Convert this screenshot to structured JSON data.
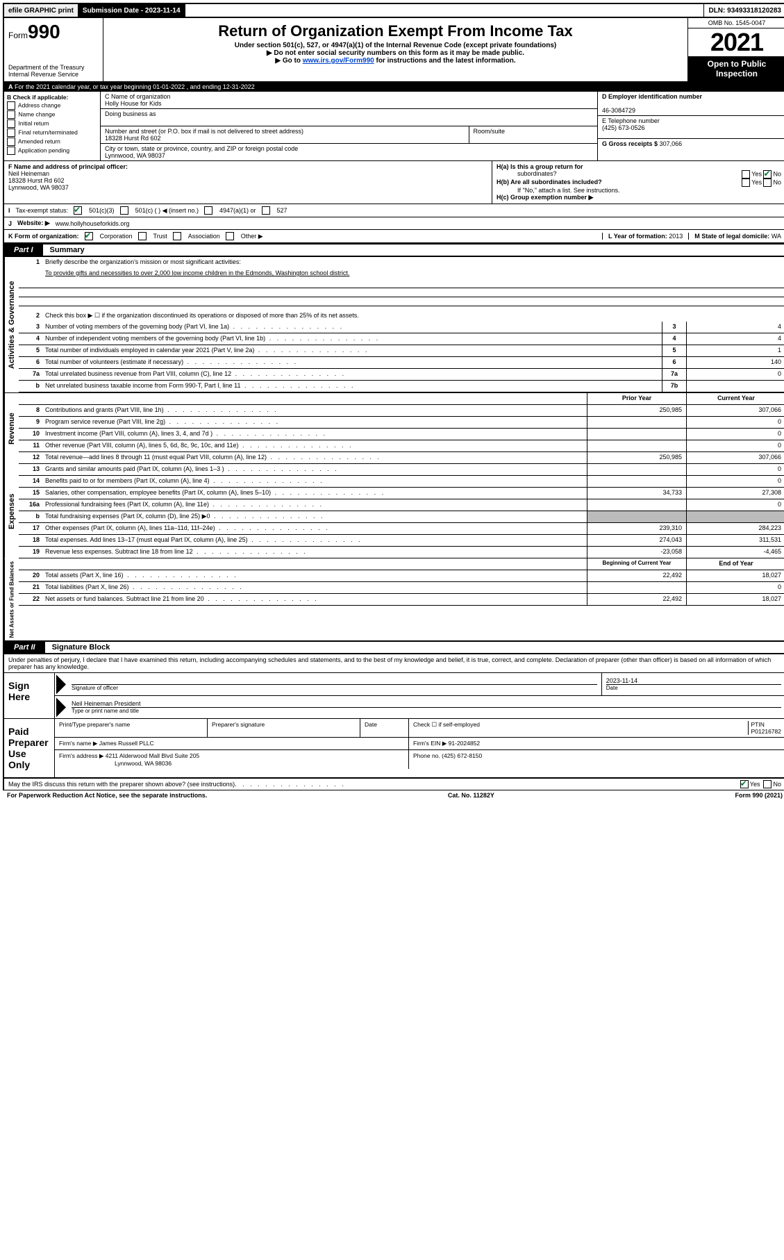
{
  "topbar": {
    "efile": "efile GRAPHIC print",
    "submission_label": "Submission Date - 2023-11-14",
    "dln": "DLN: 93493318120283"
  },
  "header": {
    "form_label": "Form",
    "form_number": "990",
    "title": "Return of Organization Exempt From Income Tax",
    "subtitle": "Under section 501(c), 527, or 4947(a)(1) of the Internal Revenue Code (except private foundations)",
    "note1": "▶ Do not enter social security numbers on this form as it may be made public.",
    "note2_pre": "▶ Go to ",
    "note2_link": "www.irs.gov/Form990",
    "note2_post": " for instructions and the latest information.",
    "dept": "Department of the Treasury",
    "irs": "Internal Revenue Service",
    "omb": "OMB No. 1545-0047",
    "year": "2021",
    "open1": "Open to Public",
    "open2": "Inspection"
  },
  "lineA": "For the 2021 calendar year, or tax year beginning 01-01-2022    , and ending 12-31-2022",
  "boxB": {
    "label": "B Check if applicable:",
    "items": [
      "Address change",
      "Name change",
      "Initial return",
      "Final return/terminated",
      "Amended return",
      "Application pending"
    ]
  },
  "boxC": {
    "name_label": "C Name of organization",
    "name": "Holly House for Kids",
    "dba_label": "Doing business as",
    "addr_label": "Number and street (or P.O. box if mail is not delivered to street address)",
    "room_label": "Room/suite",
    "addr": "18328 Hurst Rd 602",
    "city_label": "City or town, state or province, country, and ZIP or foreign postal code",
    "city": "Lynnwood, WA  98037"
  },
  "boxD": {
    "label": "D Employer identification number",
    "value": "46-3084729"
  },
  "boxE": {
    "label": "E Telephone number",
    "value": "(425) 673-0526"
  },
  "boxG": {
    "label": "G Gross receipts $",
    "value": "307,066"
  },
  "boxF": {
    "label": "F  Name and address of principal officer:",
    "name": "Neil Heineman",
    "addr1": "18328 Hurst Rd 602",
    "addr2": "Lynnwood, WA  98037"
  },
  "boxH": {
    "ha_label": "H(a)  Is this a group return for",
    "ha_label2": "subordinates?",
    "hb_label": "H(b)  Are all subordinates included?",
    "hb_note": "If \"No,\" attach a list. See instructions.",
    "hc_label": "H(c)  Group exemption number ▶"
  },
  "boxI": {
    "label": "I",
    "text": "Tax-exempt status:",
    "opts": [
      "501(c)(3)",
      "501(c) (  ) ◀ (insert no.)",
      "4947(a)(1) or",
      "527"
    ]
  },
  "boxJ": {
    "label": "J",
    "text": "Website: ▶",
    "value": "www.hollyhouseforkids.org"
  },
  "boxK": {
    "label": "K Form of organization:",
    "opts": [
      "Corporation",
      "Trust",
      "Association",
      "Other ▶"
    ]
  },
  "boxL": {
    "label": "L Year of formation:",
    "value": "2013"
  },
  "boxM": {
    "label": "M State of legal domicile:",
    "value": "WA"
  },
  "part1": {
    "tab": "Part I",
    "title": "Summary"
  },
  "summary": {
    "l1_label": "Briefly describe the organization's mission or most significant activities:",
    "l1_text": "To provide gifts and necessities to over 2,000 low income children in the Edmonds, Washington school district.",
    "l2_label": "Check this box ▶ ☐  if the organization discontinued its operations or disposed of more than 25% of its net assets.",
    "rows": [
      {
        "n": "3",
        "label": "Number of voting members of the governing body (Part VI, line 1a)",
        "box": "3",
        "val": "4"
      },
      {
        "n": "4",
        "label": "Number of independent voting members of the governing body (Part VI, line 1b)",
        "box": "4",
        "val": "4"
      },
      {
        "n": "5",
        "label": "Total number of individuals employed in calendar year 2021 (Part V, line 2a)",
        "box": "5",
        "val": "1"
      },
      {
        "n": "6",
        "label": "Total number of volunteers (estimate if necessary)",
        "box": "6",
        "val": "140"
      },
      {
        "n": "7a",
        "label": "Total unrelated business revenue from Part VIII, column (C), line 12",
        "box": "7a",
        "val": "0"
      },
      {
        "n": "b",
        "label": "Net unrelated business taxable income from Form 990-T, Part I, line 11",
        "box": "7b",
        "val": ""
      }
    ]
  },
  "revenue": {
    "hdr_prior": "Prior Year",
    "hdr_current": "Current Year",
    "rows": [
      {
        "n": "8",
        "label": "Contributions and grants (Part VIII, line 1h)",
        "p": "250,985",
        "c": "307,066"
      },
      {
        "n": "9",
        "label": "Program service revenue (Part VIII, line 2g)",
        "p": "",
        "c": "0"
      },
      {
        "n": "10",
        "label": "Investment income (Part VIII, column (A), lines 3, 4, and 7d )",
        "p": "",
        "c": "0"
      },
      {
        "n": "11",
        "label": "Other revenue (Part VIII, column (A), lines 5, 6d, 8c, 9c, 10c, and 11e)",
        "p": "",
        "c": "0"
      },
      {
        "n": "12",
        "label": "Total revenue—add lines 8 through 11 (must equal Part VIII, column (A), line 12)",
        "p": "250,985",
        "c": "307,066"
      }
    ]
  },
  "expenses": {
    "rows": [
      {
        "n": "13",
        "label": "Grants and similar amounts paid (Part IX, column (A), lines 1–3 )",
        "p": "",
        "c": "0"
      },
      {
        "n": "14",
        "label": "Benefits paid to or for members (Part IX, column (A), line 4)",
        "p": "",
        "c": "0"
      },
      {
        "n": "15",
        "label": "Salaries, other compensation, employee benefits (Part IX, column (A), lines 5–10)",
        "p": "34,733",
        "c": "27,308"
      },
      {
        "n": "16a",
        "label": "Professional fundraising fees (Part IX, column (A), line 11e)",
        "p": "",
        "c": "0"
      },
      {
        "n": "b",
        "label": "Total fundraising expenses (Part IX, column (D), line 25) ▶0",
        "p": "shade",
        "c": "shade"
      },
      {
        "n": "17",
        "label": "Other expenses (Part IX, column (A), lines 11a–11d, 11f–24e)",
        "p": "239,310",
        "c": "284,223"
      },
      {
        "n": "18",
        "label": "Total expenses. Add lines 13–17 (must equal Part IX, column (A), line 25)",
        "p": "274,043",
        "c": "311,531"
      },
      {
        "n": "19",
        "label": "Revenue less expenses. Subtract line 18 from line 12",
        "p": "-23,058",
        "c": "-4,465"
      }
    ]
  },
  "netassets": {
    "hdr_begin": "Beginning of Current Year",
    "hdr_end": "End of Year",
    "rows": [
      {
        "n": "20",
        "label": "Total assets (Part X, line 16)",
        "p": "22,492",
        "c": "18,027"
      },
      {
        "n": "21",
        "label": "Total liabilities (Part X, line 26)",
        "p": "",
        "c": "0"
      },
      {
        "n": "22",
        "label": "Net assets or fund balances. Subtract line 21 from line 20",
        "p": "22,492",
        "c": "18,027"
      }
    ]
  },
  "part2": {
    "tab": "Part II",
    "title": "Signature Block"
  },
  "sig": {
    "declaration": "Under penalties of perjury, I declare that I have examined this return, including accompanying schedules and statements, and to the best of my knowledge and belief, it is true, correct, and complete. Declaration of preparer (other than officer) is based on all information of which preparer has any knowledge.",
    "sign_here": "Sign Here",
    "sig_officer": "Signature of officer",
    "date_label": "Date",
    "date_value": "2023-11-14",
    "name_title": "Neil Heineman  President",
    "name_title_label": "Type or print name and title",
    "paid": "Paid Preparer Use Only",
    "pt_name_label": "Print/Type preparer's name",
    "pt_sig_label": "Preparer's signature",
    "pt_date_label": "Date",
    "pt_check_label": "Check ☐ if self-employed",
    "ptin_label": "PTIN",
    "ptin": "P01216782",
    "firm_name_label": "Firm's name     ▶",
    "firm_name": "James Russell PLLC",
    "firm_ein_label": "Firm's EIN ▶",
    "firm_ein": "91-2024852",
    "firm_addr_label": "Firm's address ▶",
    "firm_addr1": "4211 Alderwood Mall Blvd Suite 205",
    "firm_addr2": "Lynnwood, WA  98036",
    "phone_label": "Phone no.",
    "phone": "(425) 672-8150",
    "discuss": "May the IRS discuss this return with the preparer shown above? (see instructions)"
  },
  "footer": {
    "paperwork": "For Paperwork Reduction Act Notice, see the separate instructions.",
    "cat": "Cat. No. 11282Y",
    "form": "Form 990 (2021)"
  },
  "side_labels": {
    "ag": "Activities & Governance",
    "rev": "Revenue",
    "exp": "Expenses",
    "na": "Net Assets or Fund Balances"
  }
}
